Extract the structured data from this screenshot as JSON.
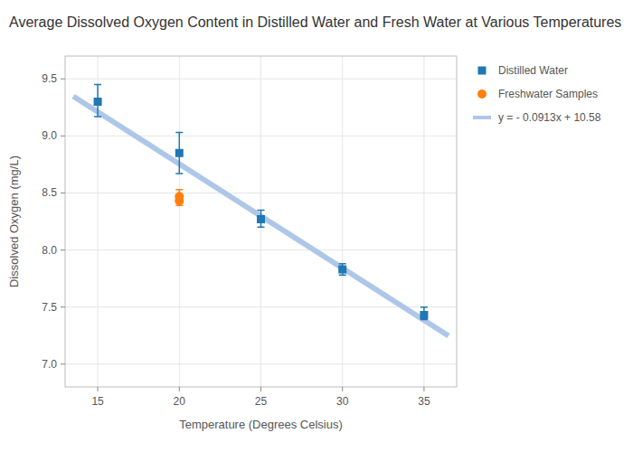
{
  "chart_data": {
    "type": "scatter",
    "title": "Average Dissolved Oxygen Content in Distilled Water and Fresh Water at Various Temperatures",
    "x_label": "Temperature (Degrees Celsius)",
    "y_label": "Dissolved Oxygen (mg/L)",
    "xlim": [
      13,
      37
    ],
    "xticks": [
      15,
      20,
      25,
      30,
      35
    ],
    "ylim": [
      6.8,
      9.7
    ],
    "yticks": [
      {
        "value": 7,
        "label": "7.0"
      },
      7.5,
      {
        "value": 8,
        "label": "8.0"
      },
      8.5,
      {
        "value": 9,
        "label": "9.0"
      },
      9.5
    ],
    "grid": true,
    "legend": "right",
    "series": [
      {
        "name": "Distilled Water",
        "type": "scatter",
        "marker": "square",
        "color": "#1f77b4",
        "x": [
          15,
          20,
          25,
          30,
          35
        ],
        "values": [
          9.3,
          8.85,
          8.27,
          7.83,
          7.43
        ],
        "yerr_low": [
          0.13,
          0.18,
          0.07,
          0.05,
          0.04
        ],
        "yerr_high": [
          0.15,
          0.18,
          0.08,
          0.05,
          0.07
        ]
      },
      {
        "name": "Freshwater Samples",
        "type": "scatter",
        "marker": "circle",
        "color": "#ff7f0e",
        "x": [
          20,
          20
        ],
        "values": [
          8.47,
          8.43
        ],
        "yerr_low": [
          0.04,
          0.04
        ],
        "yerr_high": [
          0.06,
          0.05
        ]
      },
      {
        "name": "y = - 0.0913x + 10.58",
        "type": "line",
        "line_style": "solid",
        "color": "#aec7e8",
        "x": [
          13.5,
          36.5
        ],
        "values": [
          9.34745,
          7.24755
        ]
      }
    ]
  }
}
